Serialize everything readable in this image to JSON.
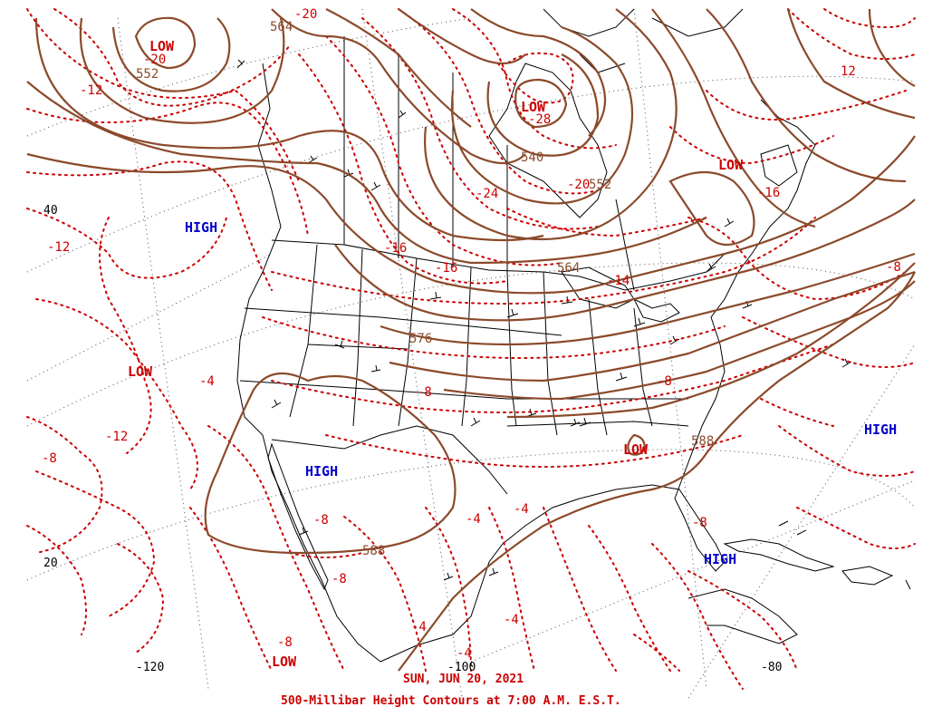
{
  "colors": {
    "height_contour": "#8b4a2b",
    "temp_contour": "#cc0000",
    "high": "#0000cc",
    "low": "#cc0000",
    "basemap": "#000000",
    "background": "#ffffff"
  },
  "caption": {
    "date": "SUN, JUN 20, 2021",
    "title": "500-Millibar Height Contours at 7:00 A.M. E.S.T."
  },
  "axes": {
    "lat_labels": [
      "40",
      "20"
    ],
    "lon_labels": [
      "-120",
      "-100",
      "-80"
    ]
  },
  "pressure_centers": [
    {
      "type": "LOW",
      "label": "LOW"
    },
    {
      "type": "LOW",
      "label": "LOW"
    },
    {
      "type": "LOW",
      "label": "LOW"
    },
    {
      "type": "LOW",
      "label": "LOW"
    },
    {
      "type": "LOW",
      "label": "LOW"
    },
    {
      "type": "LOW",
      "label": "LOW"
    },
    {
      "type": "HIGH",
      "label": "HIGH"
    },
    {
      "type": "HIGH",
      "label": "HIGH"
    },
    {
      "type": "HIGH",
      "label": "HIGH"
    },
    {
      "type": "HIGH",
      "label": "HIGH"
    }
  ],
  "height_labels": [
    "564",
    "552",
    "540",
    "552",
    "564",
    "576",
    "588",
    "588"
  ],
  "temp_labels": [
    "-20",
    "-20",
    "-12",
    "-28",
    "12",
    "-24",
    "-20",
    "-16",
    "-16",
    "-16",
    "-14",
    "-12",
    "-8",
    "-4",
    "-8",
    "-8",
    "-12",
    "-8",
    "-4",
    "-4",
    "-8",
    "-8",
    "-8",
    "-8",
    "-4",
    "-4",
    "-4"
  ]
}
